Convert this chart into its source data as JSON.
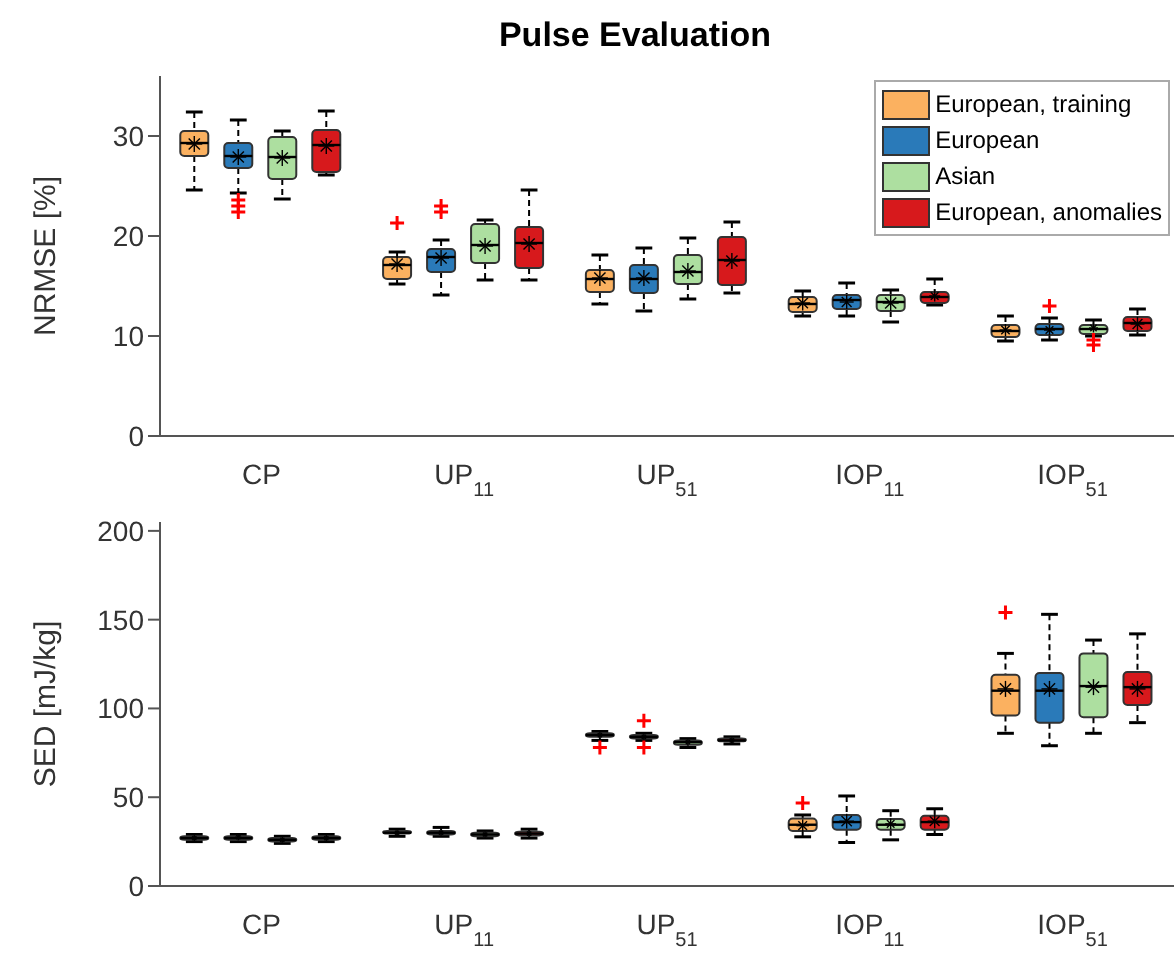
{
  "chart_data": [
    {
      "type": "box",
      "title": "Pulse Evaluation",
      "ylabel": "NRMSE [%]",
      "categories": [
        "CP",
        "UP$_{11}$",
        "UP$_{51}$",
        "IOP$_{11}$",
        "IOP$_{51}$"
      ],
      "ylim": [
        0,
        36
      ],
      "yticks": [
        0,
        10,
        20,
        30
      ],
      "legend": "top right",
      "series": [
        {
          "name": "European, training",
          "color": "#fbb160",
          "boxes": [
            {
              "low": 24.6,
              "q1": 28,
              "median": 29.3,
              "q3": 30.5,
              "high": 32.4,
              "mean": 29.2
            },
            {
              "low": 15.2,
              "q1": 15.7,
              "median": 17.1,
              "q3": 17.9,
              "high": 18.4,
              "mean": 17.2,
              "outliers": [
                21.3
              ]
            },
            {
              "low": 13.2,
              "q1": 14.4,
              "median": 15.7,
              "q3": 16.6,
              "high": 18.1,
              "mean": 15.8
            },
            {
              "low": 12,
              "q1": 12.4,
              "median": 13.2,
              "q3": 13.9,
              "high": 14.5,
              "mean": 13.3
            },
            {
              "low": 9.5,
              "q1": 9.9,
              "median": 10.5,
              "q3": 11.1,
              "high": 12,
              "mean": 10.6
            }
          ]
        },
        {
          "name": "European",
          "color": "#2a7ab9",
          "boxes": [
            {
              "low": 24.3,
              "q1": 26.8,
              "median": 28,
              "q3": 29.3,
              "high": 31.6,
              "mean": 27.9,
              "outliers": [
                23.6,
                23,
                22.4
              ]
            },
            {
              "low": 14.1,
              "q1": 16.4,
              "median": 17.9,
              "q3": 18.7,
              "high": 19.6,
              "mean": 17.8,
              "outliers": [
                23,
                22.4
              ]
            },
            {
              "low": 12.5,
              "q1": 14.3,
              "median": 15.7,
              "q3": 17.1,
              "high": 18.8,
              "mean": 15.8
            },
            {
              "low": 12,
              "q1": 12.7,
              "median": 13.6,
              "q3": 14.1,
              "high": 15.3,
              "mean": 13.4
            },
            {
              "low": 9.6,
              "q1": 10.1,
              "median": 10.7,
              "q3": 11.2,
              "high": 11.8,
              "mean": 10.6,
              "outliers": [
                13
              ]
            }
          ]
        },
        {
          "name": "Asian",
          "color": "#addfa0",
          "boxes": [
            {
              "low": 23.7,
              "q1": 25.7,
              "median": 27.9,
              "q3": 29.9,
              "high": 30.5,
              "mean": 27.8
            },
            {
              "low": 15.6,
              "q1": 17.3,
              "median": 19.1,
              "q3": 21.2,
              "high": 21.6,
              "mean": 19
            },
            {
              "low": 13.7,
              "q1": 15.2,
              "median": 16.4,
              "q3": 18.1,
              "high": 19.8,
              "mean": 16.5
            },
            {
              "low": 11.4,
              "q1": 12.5,
              "median": 13.4,
              "q3": 14.1,
              "high": 14.6,
              "mean": 13.3
            },
            {
              "low": 10,
              "q1": 10.2,
              "median": 10.7,
              "q3": 11.1,
              "high": 11.6,
              "mean": 10.8,
              "outliers": [
                9.6,
                9.1
              ]
            }
          ]
        },
        {
          "name": "European, anomalies",
          "color": "#d7191c",
          "boxes": [
            {
              "low": 26.1,
              "q1": 26.4,
              "median": 29.1,
              "q3": 30.6,
              "high": 32.5,
              "mean": 29
            },
            {
              "low": 15.6,
              "q1": 16.8,
              "median": 19.3,
              "q3": 20.9,
              "high": 24.6,
              "mean": 19.2
            },
            {
              "low": 14.3,
              "q1": 15.1,
              "median": 17.6,
              "q3": 19.9,
              "high": 21.4,
              "mean": 17.5
            },
            {
              "low": 13.1,
              "q1": 13.3,
              "median": 13.9,
              "q3": 14.4,
              "high": 15.7,
              "mean": 14
            },
            {
              "low": 10.1,
              "q1": 10.5,
              "median": 11.3,
              "q3": 11.9,
              "high": 12.7,
              "mean": 11.2
            }
          ]
        }
      ]
    },
    {
      "type": "box",
      "ylabel": "SED [mJ/kg]",
      "categories": [
        "CP",
        "UP$_{11}$",
        "UP$_{51}$",
        "IOP$_{11}$",
        "IOP$_{51}$"
      ],
      "ylim": [
        0,
        205
      ],
      "yticks": [
        0,
        50,
        100,
        150,
        200
      ],
      "series": [
        {
          "color": "#fbb160",
          "boxes": [
            {
              "low": 25,
              "q1": 26,
              "median": 27,
              "q3": 28,
              "high": 29,
              "mean": 27
            },
            {
              "low": 28,
              "q1": 29.5,
              "median": 30,
              "q3": 31,
              "high": 32,
              "mean": 30
            },
            {
              "low": 82,
              "q1": 84,
              "median": 85,
              "q3": 86,
              "high": 87,
              "mean": 85,
              "outliers": [
                78
              ]
            },
            {
              "low": 27.7,
              "q1": 31,
              "median": 34.5,
              "q3": 38,
              "high": 40,
              "mean": 34,
              "outliers": [
                46.8
              ]
            },
            {
              "low": 86,
              "q1": 96,
              "median": 110,
              "q3": 119,
              "high": 131,
              "mean": 111,
              "outliers": [
                154
              ]
            }
          ]
        },
        {
          "color": "#2a7ab9",
          "boxes": [
            {
              "low": 25,
              "q1": 26,
              "median": 27,
              "q3": 28,
              "high": 29,
              "mean": 27.5
            },
            {
              "low": 28,
              "q1": 29,
              "median": 30,
              "q3": 31,
              "high": 33,
              "mean": 30
            },
            {
              "low": 82,
              "q1": 83,
              "median": 84,
              "q3": 85,
              "high": 86,
              "mean": 84,
              "outliers": [
                93,
                78
              ]
            },
            {
              "low": 24.5,
              "q1": 31.7,
              "median": 36,
              "q3": 40,
              "high": 50.7,
              "mean": 36.5
            },
            {
              "low": 79,
              "q1": 92,
              "median": 110,
              "q3": 120,
              "high": 153,
              "mean": 111
            }
          ]
        },
        {
          "color": "#addfa0",
          "boxes": [
            {
              "low": 24,
              "q1": 25,
              "median": 26,
              "q3": 27,
              "high": 28,
              "mean": 26
            },
            {
              "low": 27,
              "q1": 28,
              "median": 29,
              "q3": 30,
              "high": 31,
              "mean": 29
            },
            {
              "low": 78,
              "q1": 79.5,
              "median": 81,
              "q3": 82,
              "high": 83,
              "mean": 81
            },
            {
              "low": 26,
              "q1": 31.7,
              "median": 34.5,
              "q3": 37.8,
              "high": 42.4,
              "mean": 35
            },
            {
              "low": 86,
              "q1": 95,
              "median": 112.6,
              "q3": 131,
              "high": 138.5,
              "mean": 112
            }
          ]
        },
        {
          "color": "#d7191c",
          "boxes": [
            {
              "low": 25,
              "q1": 26,
              "median": 27,
              "q3": 28,
              "high": 29,
              "mean": 27
            },
            {
              "low": 27,
              "q1": 28.5,
              "median": 29.5,
              "q3": 30.5,
              "high": 32,
              "mean": 29.5
            },
            {
              "low": 80,
              "q1": 81.5,
              "median": 82,
              "q3": 83,
              "high": 84,
              "mean": 82
            },
            {
              "low": 29,
              "q1": 31.7,
              "median": 36,
              "q3": 39.6,
              "high": 43.5,
              "mean": 36.5
            },
            {
              "low": 92,
              "q1": 102,
              "median": 112,
              "q3": 120.5,
              "high": 142,
              "mean": 111
            }
          ]
        }
      ]
    }
  ]
}
